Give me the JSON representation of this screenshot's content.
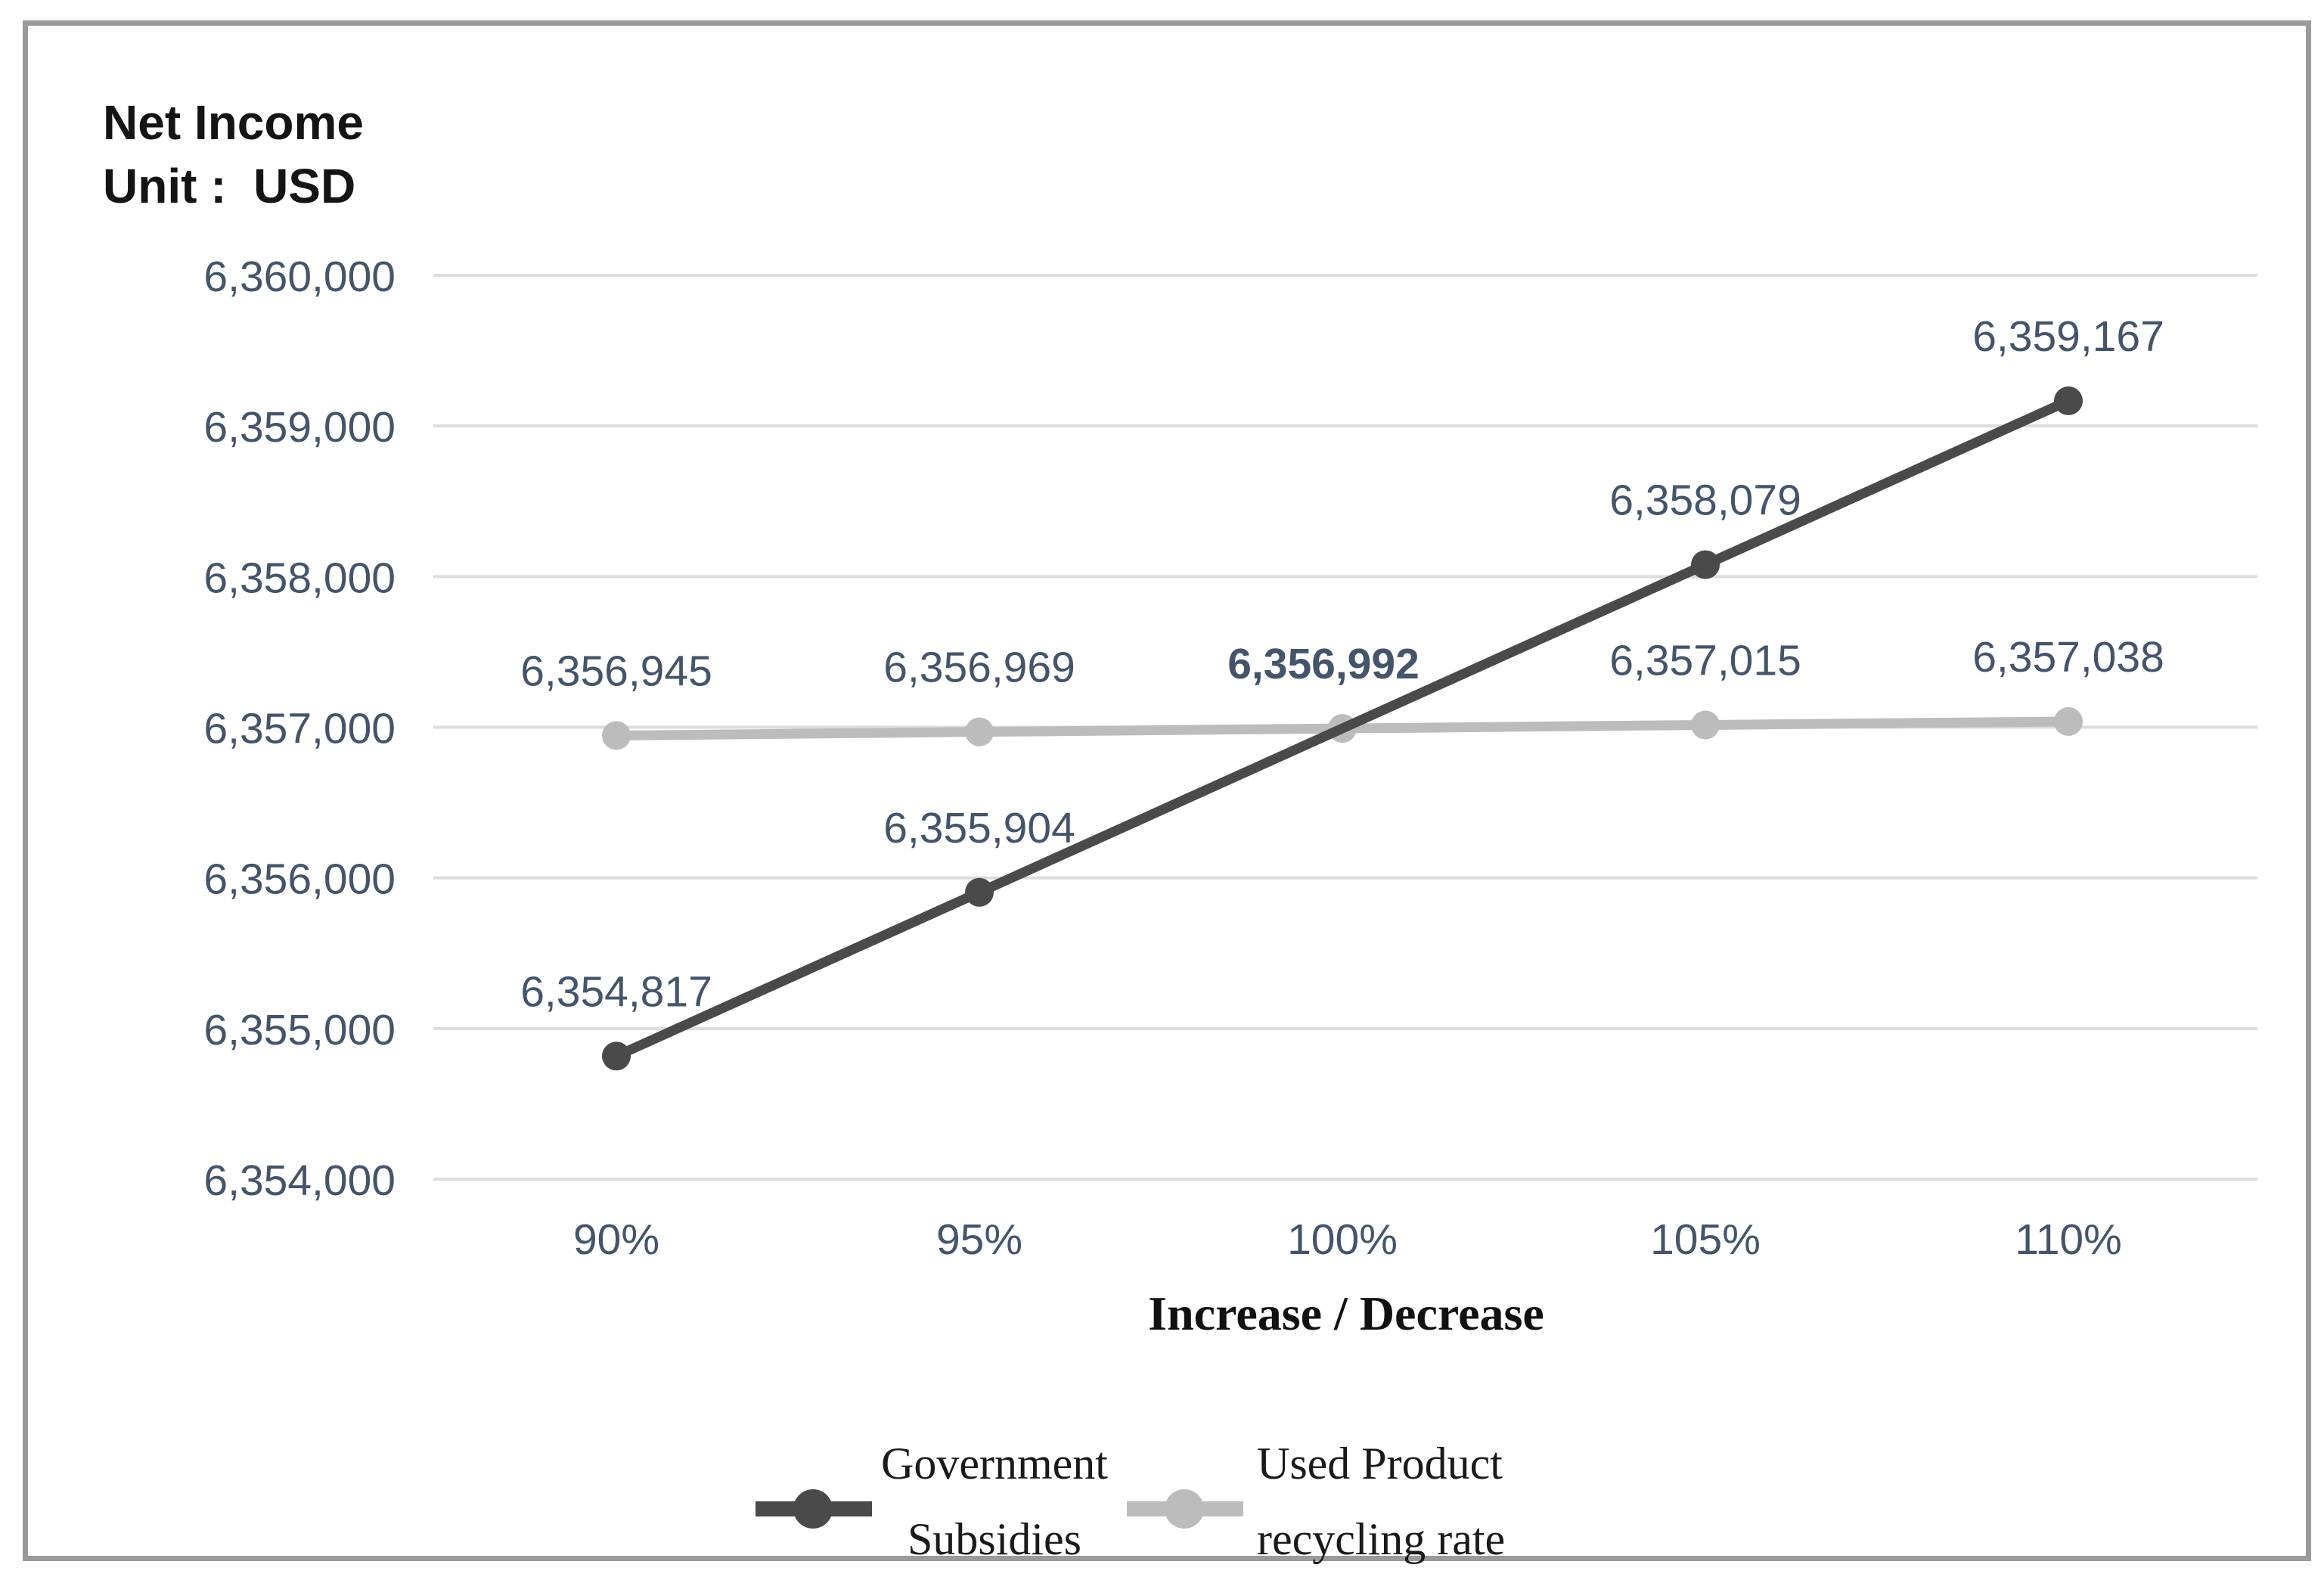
{
  "chart_data": {
    "type": "line",
    "title": "Net Income",
    "unit_label": "Unit :  USD",
    "xlabel": "Increase / Decrease",
    "categories": [
      "90%",
      "95%",
      "100%",
      "105%",
      "110%"
    ],
    "y_ticks": [
      "6,360,000",
      "6,359,000",
      "6,358,000",
      "6,357,000",
      "6,356,000",
      "6,355,000",
      "6,354,000"
    ],
    "y_tick_values": [
      6360000,
      6359000,
      6358000,
      6357000,
      6356000,
      6355000,
      6354000
    ],
    "ylim": [
      6354000,
      6360000
    ],
    "grid": "horizontal",
    "legend_position": "bottom",
    "series": [
      {
        "name": "Government Subsidies",
        "color": "#4a4a4a",
        "values": [
          6354817,
          6355904,
          6356992,
          6358079,
          6359167
        ],
        "labels": [
          "6,354,817",
          "6,355,904",
          null,
          "6,358,079",
          "6,359,167"
        ]
      },
      {
        "name": "Used Product recycling rate",
        "color": "#bcbcbc",
        "values": [
          6356945,
          6356969,
          6356992,
          6357015,
          6357038
        ],
        "labels": [
          "6,356,945",
          "6,356,969",
          "6,356,992",
          "6,357,015",
          "6,357,038"
        ]
      }
    ]
  },
  "legend": {
    "items": [
      {
        "line1": "Government",
        "line2": "Subsidies",
        "series": "Government Subsidies"
      },
      {
        "line1": "Used Product",
        "line2": "recycling rate",
        "series": "Used Product recycling rate"
      }
    ]
  },
  "colors": {
    "gridline": "#dcdcdc",
    "axis_text": "#44546a",
    "data_label_text": "#44546a",
    "frame_border": "#9a9a9a",
    "title_text": "#141414",
    "background": "#ffffff"
  }
}
